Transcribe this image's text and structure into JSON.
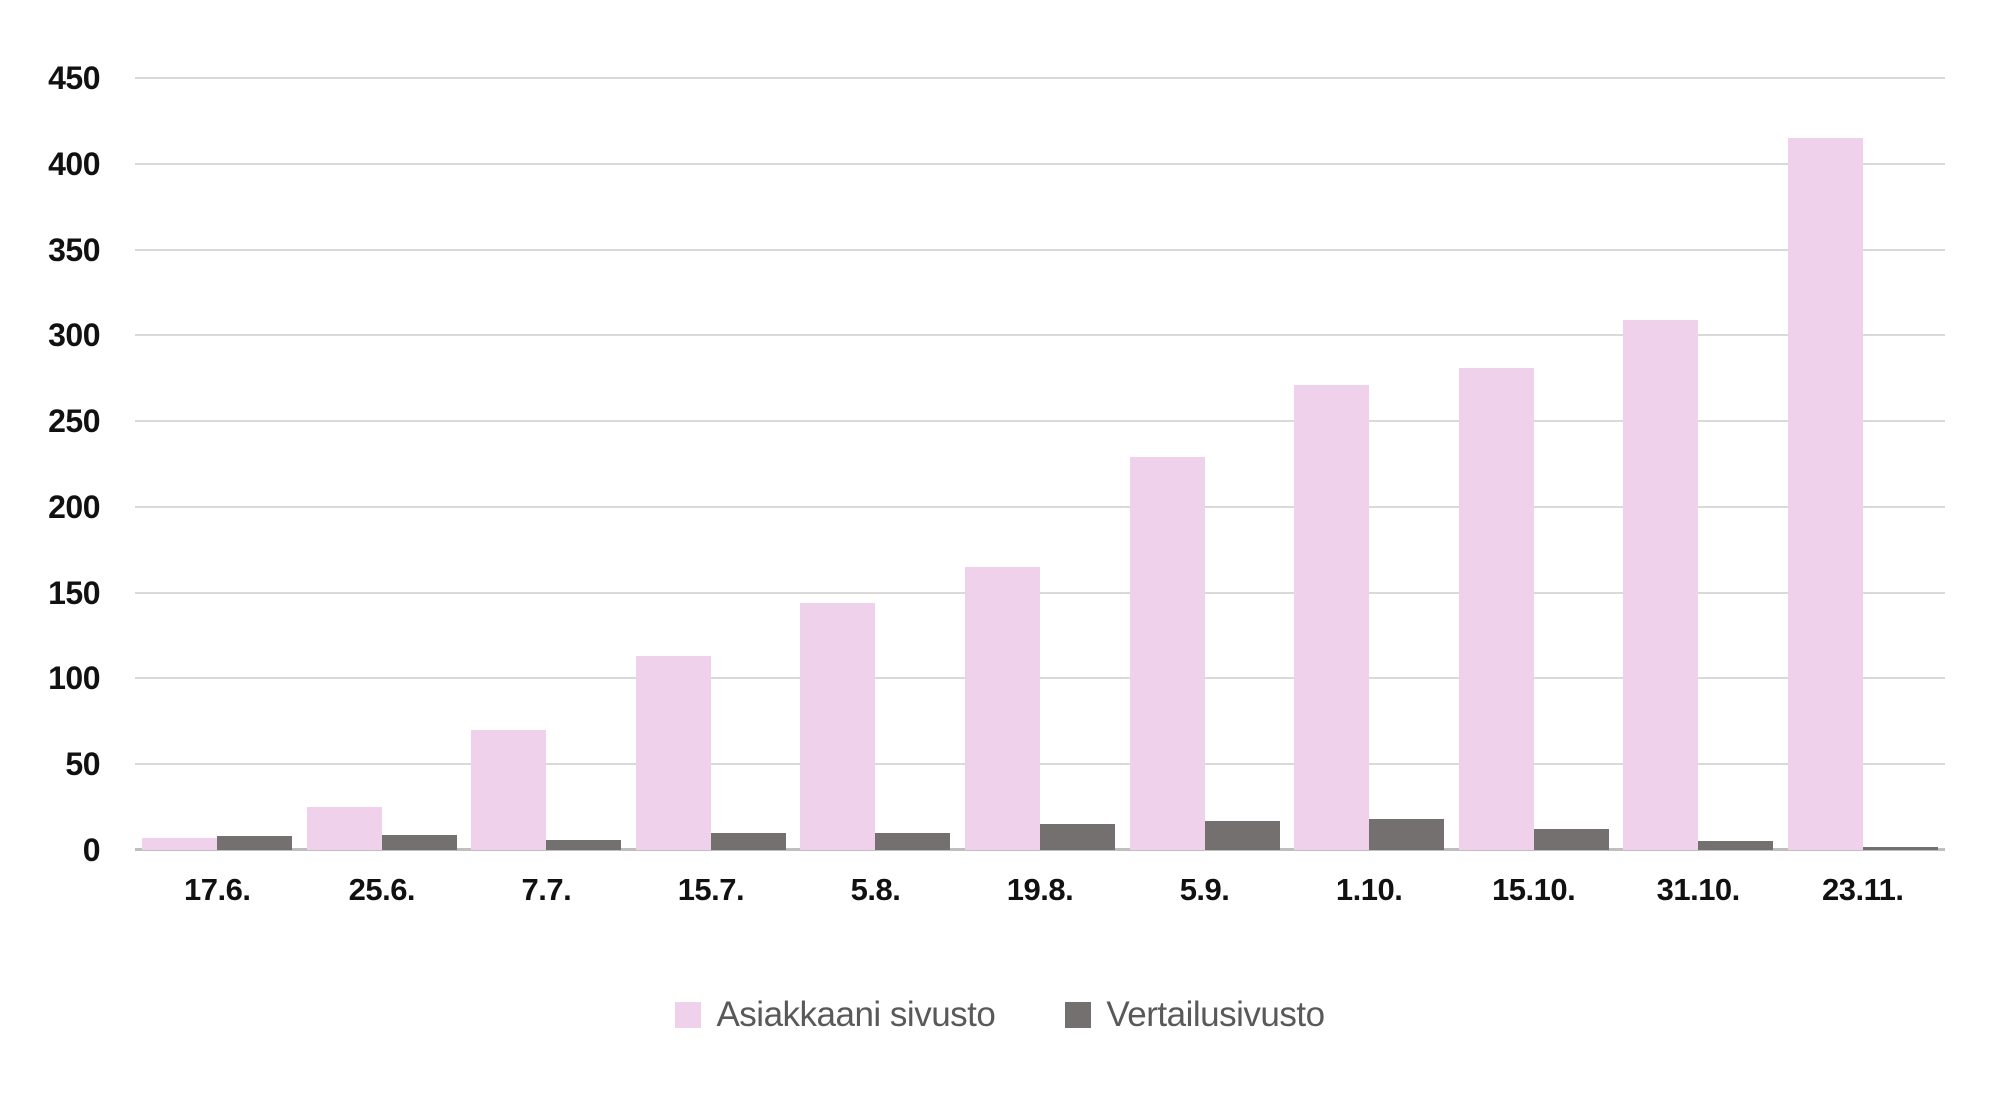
{
  "chart_data": {
    "type": "bar",
    "title": "",
    "xlabel": "",
    "ylabel": "",
    "categories": [
      "17.6.",
      "25.6.",
      "7.7.",
      "15.7.",
      "5.8.",
      "19.8.",
      "5.9.",
      "1.10.",
      "15.10.",
      "31.10.",
      "23.11."
    ],
    "series": [
      {
        "name": "Asiakkaani sivusto",
        "color": "#F0D1EC",
        "values": [
          7,
          25,
          70,
          113,
          144,
          165,
          229,
          271,
          281,
          309,
          415
        ]
      },
      {
        "name": "Vertailusivusto",
        "color": "#747070",
        "values": [
          8,
          9,
          6,
          10,
          10,
          15,
          17,
          18,
          12,
          5,
          2
        ]
      }
    ],
    "ylim": [
      0,
      450
    ],
    "yticks": [
      450,
      400,
      350,
      300,
      250,
      200,
      150,
      100,
      50,
      0
    ],
    "grid": true,
    "legend_position": "bottom"
  },
  "colors": {
    "background": "#FFFFFF",
    "gridline": "#D9D9D9",
    "baseline": "#BFBFBF",
    "tick_text": "#111111",
    "legend_text": "#595959"
  }
}
